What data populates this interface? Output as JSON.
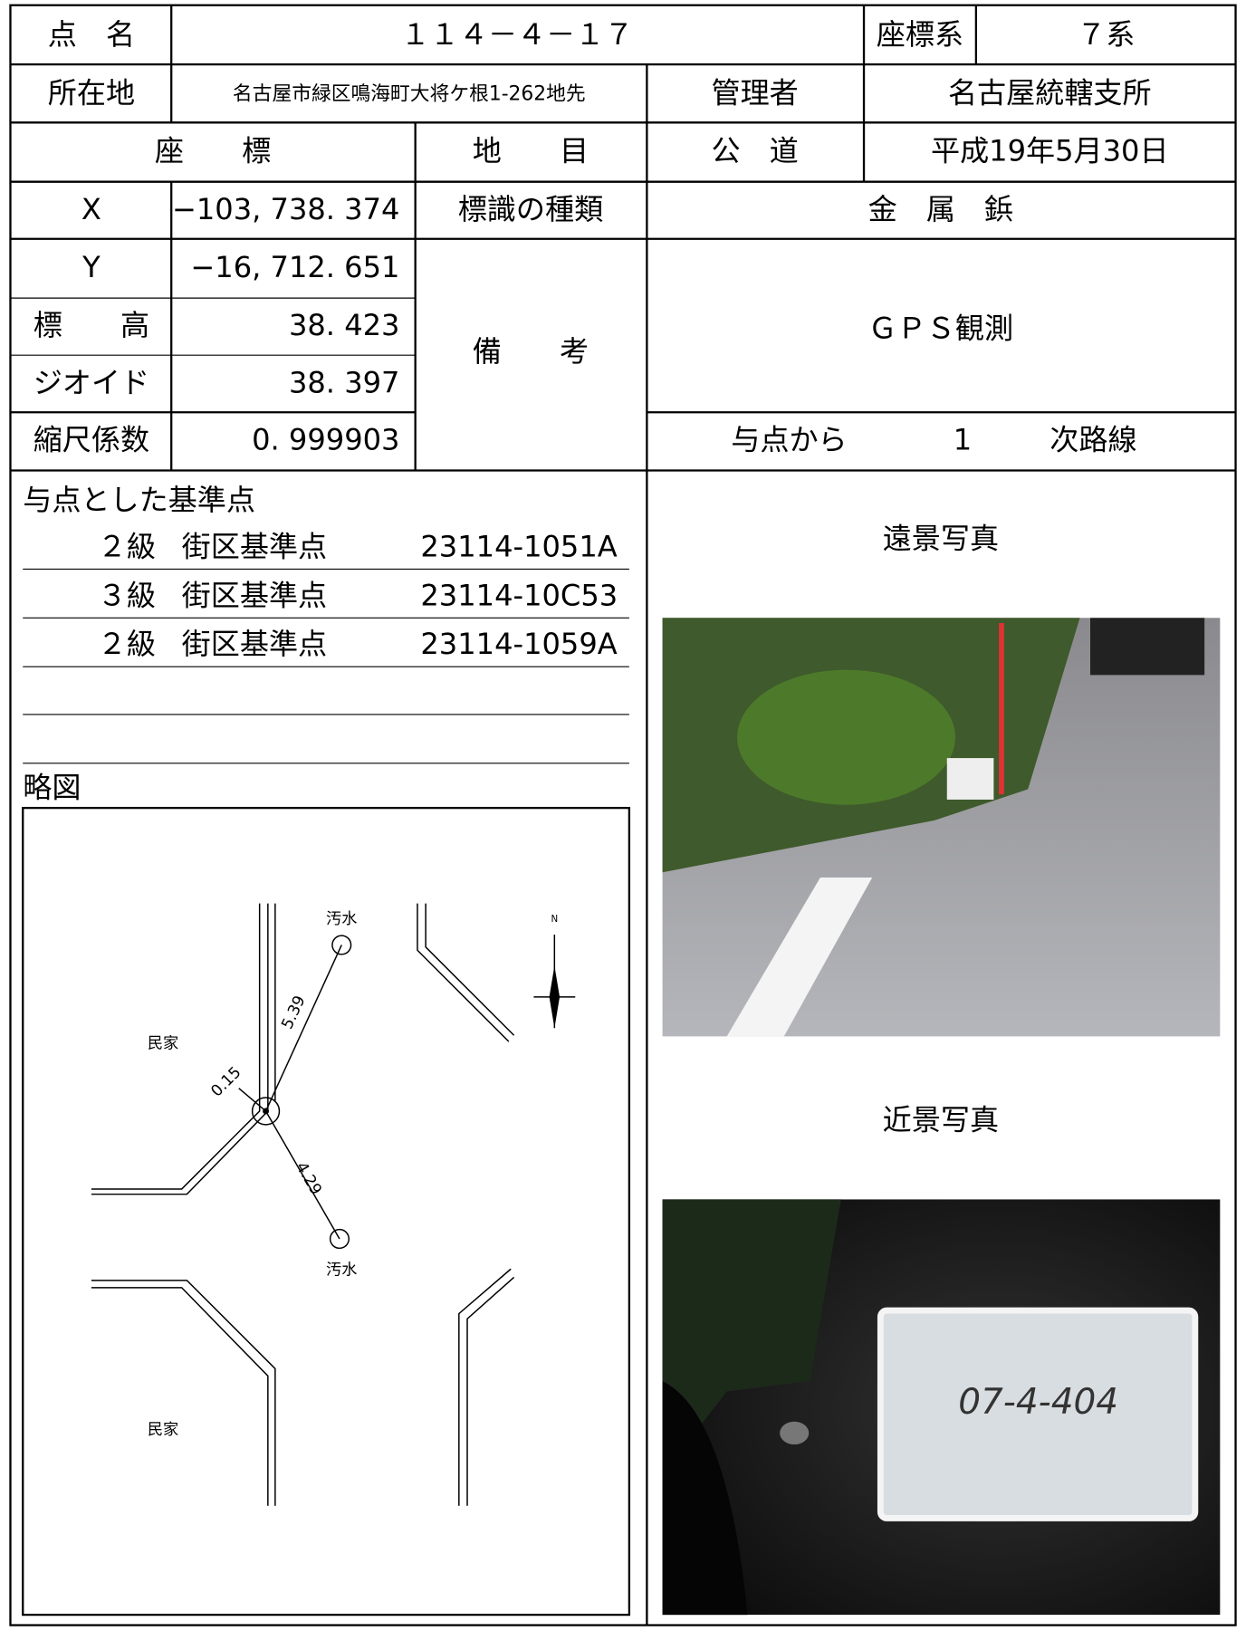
{
  "header": {
    "point_name_label": "点　名",
    "point_name": "１１４－４－１７",
    "coord_system_label": "座標系",
    "coord_system": "７系",
    "location_label": "所在地",
    "location": "名古屋市緑区鳴海町大将ケ根1-262地先",
    "manager_label": "管理者",
    "manager": "名古屋統轄支所",
    "coords_label": "座　　標",
    "land_label": "地　　目",
    "land": "公　道",
    "date": "平成19年5月30日"
  },
  "table": {
    "x_label": "X",
    "x": "−103, 738. 374",
    "y_label": "Y",
    "y": "−16, 712. 651",
    "elev_label": "標　　高",
    "elev": "38. 423",
    "geoid_label": "ジオイド",
    "geoid": "38. 397",
    "scale_label": "縮尺係数",
    "scale": "0. 999903",
    "marker_label": "標識の種類",
    "marker": "金　属　鋲",
    "remarks_label": "備　　考",
    "remarks": "ＧＰＳ観測",
    "route_prefix": "与点から",
    "route_order": "1",
    "route_suffix": "次路線"
  },
  "references": {
    "title": "与点とした基準点",
    "rows": [
      [
        "２級",
        "街区基準点",
        "23114-1051A"
      ],
      [
        "３級",
        "街区基準点",
        "23114-10C53"
      ],
      [
        "２級",
        "街区基準点",
        "23114-1059A"
      ]
    ]
  },
  "sketch": {
    "title": "略図",
    "north": "N",
    "labels": {
      "sewer_top": "汚水",
      "sewer_bottom": "汚水",
      "house_top": "民家",
      "house_bottom": "民家",
      "dist_a": "5.39",
      "dist_b": "0.15",
      "dist_c": "4.29"
    }
  },
  "photos": {
    "far_title": "遠景写真",
    "near_title": "近景写真",
    "board_text": "07-4-404"
  }
}
